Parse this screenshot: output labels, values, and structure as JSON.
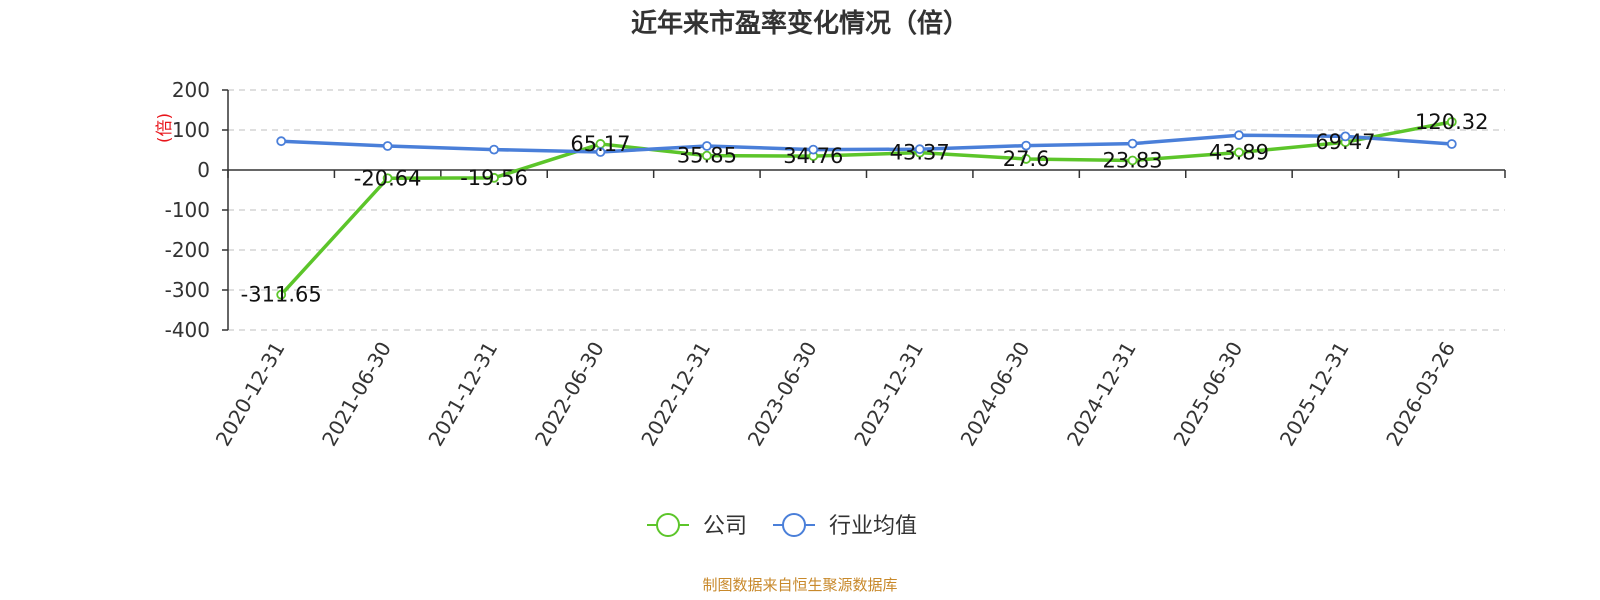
{
  "chart_data": {
    "type": "line",
    "title": "近年来市盈率变化情况（倍）",
    "ylabel": "(倍)",
    "xlabel": "",
    "categories": [
      "2020-12-31",
      "2021-06-30",
      "2021-12-31",
      "2022-06-30",
      "2022-12-31",
      "2023-06-30",
      "2023-12-31",
      "2024-06-30",
      "2024-12-31",
      "2025-06-30",
      "2025-12-31",
      "2026-03-26"
    ],
    "ylim": [
      -400,
      200
    ],
    "yticks": [
      200,
      100,
      0,
      -100,
      -200,
      -300,
      -400
    ],
    "grid": true,
    "legend_position": "bottom",
    "series": [
      {
        "name": "公司",
        "color": "#5cc52a",
        "values": [
          -311.65,
          -20.64,
          -19.56,
          65.17,
          35.85,
          34.76,
          43.37,
          27.6,
          23.83,
          43.89,
          69.47,
          120.32
        ],
        "labels": [
          "-311.65",
          "-20.64",
          "-19.56",
          "65.17",
          "35.85",
          "34.76",
          "43.37",
          "27.6",
          "23.83",
          "43.89",
          "69.47",
          "120.32"
        ]
      },
      {
        "name": "行业均值",
        "color": "#4a7fd9",
        "values": [
          72,
          60,
          51,
          45,
          60,
          51,
          52,
          61,
          66,
          87,
          84,
          65
        ]
      }
    ]
  },
  "source": "制图数据来自恒生聚源数据库"
}
